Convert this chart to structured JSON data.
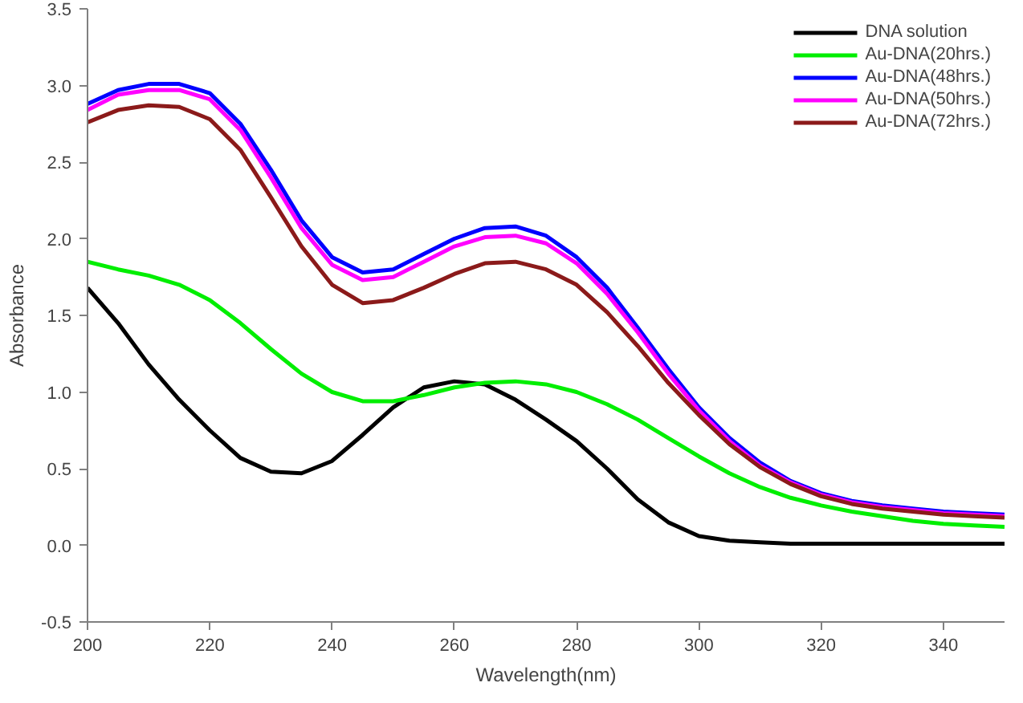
{
  "chart_data": {
    "type": "line",
    "xlabel": "Wavelength(nm)",
    "ylabel": "Absorbance",
    "x": [
      200,
      205,
      210,
      215,
      220,
      225,
      230,
      235,
      240,
      245,
      250,
      255,
      260,
      265,
      270,
      275,
      280,
      285,
      290,
      295,
      300,
      305,
      310,
      315,
      320,
      325,
      330,
      335,
      340,
      345,
      350
    ],
    "series": [
      {
        "name": "DNA solution",
        "color": "#000000",
        "values": [
          1.68,
          1.45,
          1.18,
          0.95,
          0.75,
          0.57,
          0.48,
          0.47,
          0.55,
          0.72,
          0.9,
          1.03,
          1.07,
          1.05,
          0.95,
          0.82,
          0.68,
          0.5,
          0.3,
          0.15,
          0.06,
          0.03,
          0.02,
          0.01,
          0.01,
          0.01,
          0.01,
          0.01,
          0.01,
          0.01,
          0.01
        ]
      },
      {
        "name": "Au-DNA(20hrs.)",
        "color": "#00ee00",
        "values": [
          1.85,
          1.8,
          1.76,
          1.7,
          1.6,
          1.45,
          1.28,
          1.12,
          1.0,
          0.94,
          0.94,
          0.98,
          1.03,
          1.06,
          1.07,
          1.05,
          1.0,
          0.92,
          0.82,
          0.7,
          0.58,
          0.47,
          0.38,
          0.31,
          0.26,
          0.22,
          0.19,
          0.16,
          0.14,
          0.13,
          0.12
        ]
      },
      {
        "name": "Au-DNA(48hrs.)",
        "color": "#0000ff",
        "values": [
          2.88,
          2.97,
          3.01,
          3.01,
          2.95,
          2.75,
          2.45,
          2.12,
          1.88,
          1.78,
          1.8,
          1.9,
          2.0,
          2.07,
          2.08,
          2.02,
          1.88,
          1.68,
          1.42,
          1.15,
          0.9,
          0.7,
          0.54,
          0.42,
          0.34,
          0.29,
          0.26,
          0.24,
          0.22,
          0.21,
          0.2
        ]
      },
      {
        "name": "Au-DNA(50hrs.)",
        "color": "#ff00ff",
        "values": [
          2.84,
          2.94,
          2.97,
          2.97,
          2.91,
          2.71,
          2.4,
          2.07,
          1.83,
          1.73,
          1.75,
          1.85,
          1.95,
          2.01,
          2.02,
          1.97,
          1.84,
          1.64,
          1.39,
          1.12,
          0.88,
          0.68,
          0.52,
          0.41,
          0.33,
          0.28,
          0.25,
          0.23,
          0.21,
          0.2,
          0.19
        ]
      },
      {
        "name": "Au-DNA(72hrs.)",
        "color": "#8b1a1a",
        "values": [
          2.76,
          2.84,
          2.87,
          2.86,
          2.78,
          2.58,
          2.27,
          1.95,
          1.7,
          1.58,
          1.6,
          1.68,
          1.77,
          1.84,
          1.85,
          1.8,
          1.7,
          1.52,
          1.3,
          1.06,
          0.85,
          0.66,
          0.51,
          0.4,
          0.32,
          0.27,
          0.24,
          0.22,
          0.2,
          0.19,
          0.18
        ]
      }
    ],
    "xlim": [
      200,
      350
    ],
    "ylim": [
      -0.5,
      3.5
    ],
    "xticks": [
      200,
      220,
      240,
      260,
      280,
      300,
      320,
      340
    ],
    "yticks": [
      {
        "value": -0.5,
        "label": "-0.5"
      },
      {
        "value": 0,
        "label": "0.0"
      },
      {
        "value": 0.5,
        "label": "0.5"
      },
      {
        "value": 1,
        "label": "1.0"
      },
      {
        "value": 1.5,
        "label": "1.5"
      },
      {
        "value": 2,
        "label": "2.0"
      },
      {
        "value": 2.5,
        "label": "2.5"
      },
      {
        "value": 3,
        "label": "3.0"
      },
      {
        "value": 3.5,
        "label": "3.5"
      }
    ],
    "grid": false,
    "legend": "top right",
    "marker": "none",
    "line_style": "solid"
  }
}
